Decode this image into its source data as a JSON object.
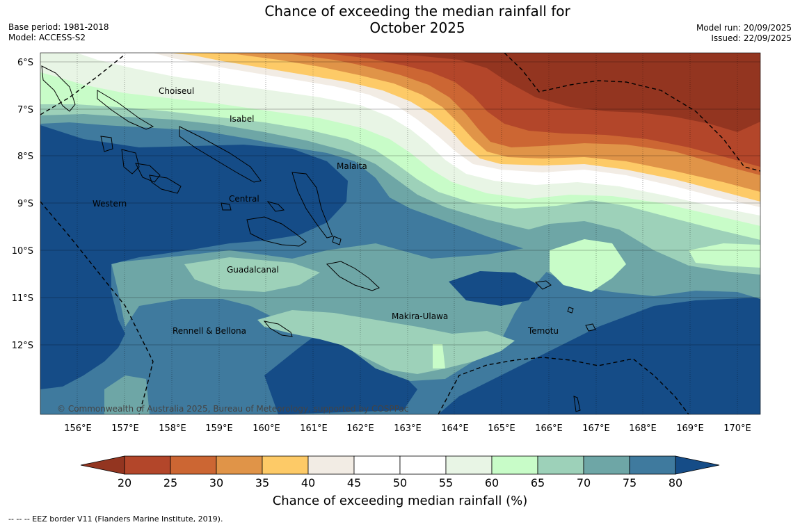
{
  "title": {
    "line1": "Chance of exceeding the median rainfall for",
    "line2": "October 2025"
  },
  "meta": {
    "base_period": "Base period: 1981-2018",
    "model": "Model: ACCESS-S2",
    "model_run": "Model run: 20/09/2025",
    "issued": "Issued: 22/09/2025"
  },
  "map": {
    "lat_labels": [
      "6°S",
      "7°S",
      "8°S",
      "9°S",
      "10°S",
      "11°S",
      "12°S"
    ],
    "lon_labels": [
      "156°E",
      "157°E",
      "158°E",
      "159°E",
      "160°E",
      "161°E",
      "162°E",
      "163°E",
      "164°E",
      "165°E",
      "166°E",
      "167°E",
      "168°E",
      "169°E",
      "170°E"
    ],
    "regions": [
      "Choiseul",
      "Isabel",
      "Malaita",
      "Central",
      "Western",
      "Guadalcanal",
      "Makira-Ulawa",
      "Rennell & Bellona",
      "Temotu"
    ],
    "copyright": "© Commonwealth of Australia 2025, Bureau of Meteorology, supported by COSPPac"
  },
  "colorbar": {
    "ticks": [
      "20",
      "25",
      "30",
      "35",
      "40",
      "45",
      "50",
      "55",
      "60",
      "65",
      "70",
      "75",
      "80"
    ],
    "colors": [
      "#b3462a",
      "#cc6633",
      "#e09448",
      "#fdca67",
      "#f2ece4",
      "#ffffff",
      "#ffffff",
      "#e8f5e5",
      "#c8fcc8",
      "#9dd1b9",
      "#6ea6a6",
      "#3f7a9e"
    ],
    "low_color": "#933520",
    "high_color": "#154c87",
    "label": "Chance of exceeding median rainfall (%)"
  },
  "footnote": "--  --  -- EEZ border V11 (Flanders Marine Institute, 2019)."
}
